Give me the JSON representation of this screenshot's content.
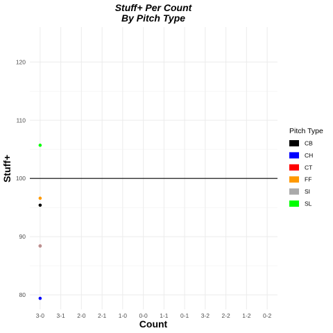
{
  "chart_data": {
    "type": "scatter",
    "title": "Stuff+ Per Count",
    "subtitle": "By Pitch Type",
    "xlabel": "Count",
    "ylabel": "Stuff+",
    "categories": [
      "3-0",
      "3-1",
      "2-0",
      "2-1",
      "1-0",
      "0-0",
      "1-1",
      "0-1",
      "3-2",
      "2-2",
      "1-2",
      "0-2"
    ],
    "ylim": [
      77.5,
      126
    ],
    "yticks": [
      80,
      90,
      100,
      110,
      120
    ],
    "reference_line": 100,
    "grid": true,
    "legend_title": "Pitch Type",
    "legend_position": "right",
    "series": [
      {
        "name": "CB",
        "color": "#000000",
        "points": [
          {
            "x": "3-0",
            "y": 95.4
          }
        ]
      },
      {
        "name": "CH",
        "color": "#0000FF",
        "points": [
          {
            "x": "3-0",
            "y": 79.4
          }
        ]
      },
      {
        "name": "CT",
        "color": "#FF0000",
        "points": [
          {
            "x": "3-0",
            "y": 88.4
          }
        ]
      },
      {
        "name": "FF",
        "color": "#FF9900",
        "points": [
          {
            "x": "3-0",
            "y": 96.6
          }
        ]
      },
      {
        "name": "SI",
        "color": "#AAAAAA",
        "points": [
          {
            "x": "3-0",
            "y": 88.4
          }
        ]
      },
      {
        "name": "SL",
        "color": "#00FF00",
        "points": [
          {
            "x": "3-0",
            "y": 105.7
          }
        ]
      }
    ]
  }
}
